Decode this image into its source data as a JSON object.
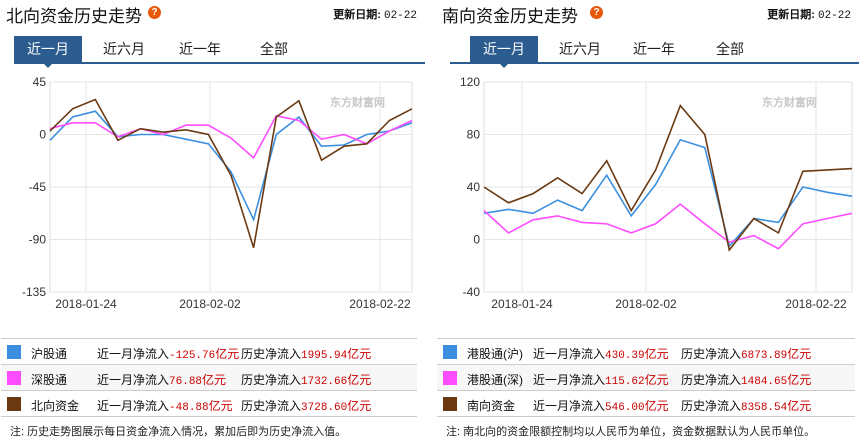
{
  "left": {
    "title": "北向资金历史走势",
    "update_label": "更新日期:",
    "update_value": "02-22",
    "tabs": [
      "近一月",
      "近六月",
      "近一年",
      "全部"
    ],
    "legend": [
      {
        "name": "沪股通",
        "monthly_label": "近一月净流入",
        "monthly_value": "-125.76",
        "unit": "亿元",
        "hist_label": "历史净流入",
        "hist_value": "1995.94",
        "color": "#3b8fe0"
      },
      {
        "name": "深股通",
        "monthly_label": "近一月净流入",
        "monthly_value": "76.88",
        "unit": "亿元",
        "hist_label": "历史净流入",
        "hist_value": "1732.66",
        "color": "#ff4dff"
      },
      {
        "name": "北向资金",
        "monthly_label": "近一月净流入",
        "monthly_value": "-48.88",
        "unit": "亿元",
        "hist_label": "历史净流入",
        "hist_value": "3728.60",
        "color": "#6b3a12"
      }
    ],
    "note": "注: 历史走势图展示每日资金净流入情况，累加后即为历史净流入值。",
    "watermark": "东方财富网",
    "chart_data": {
      "type": "line",
      "x_ticks": [
        "2018-01-24",
        "2018-02-02",
        "2018-02-22"
      ],
      "y_ticks": [
        45,
        0,
        -45,
        -90,
        -135
      ],
      "ylim": [
        -135,
        45
      ],
      "series": [
        {
          "name": "沪股通",
          "color": "#3b8fe0",
          "values": [
            -5,
            15,
            20,
            -2,
            0,
            0,
            -4,
            -8,
            -32,
            -73,
            0,
            15,
            -10,
            -9,
            0,
            3,
            10
          ]
        },
        {
          "name": "深股通",
          "color": "#ff4dff",
          "values": [
            5,
            10,
            10,
            -2,
            5,
            0,
            8,
            8,
            -3,
            -20,
            16,
            12,
            -4,
            0,
            -8,
            3,
            12
          ]
        },
        {
          "name": "北向资金",
          "color": "#6b3a12",
          "values": [
            3,
            22,
            30,
            -5,
            5,
            2,
            4,
            0,
            -35,
            -97,
            15,
            29,
            -22,
            -10,
            -8,
            12,
            22
          ]
        }
      ]
    }
  },
  "right": {
    "title": "南向资金历史走势",
    "update_label": "更新日期:",
    "update_value": "02-22",
    "tabs": [
      "近一月",
      "近六月",
      "近一年",
      "全部"
    ],
    "legend": [
      {
        "name": "港股通(沪)",
        "monthly_label": "近一月净流入",
        "monthly_value": "430.39",
        "unit": "亿元",
        "hist_label": "历史净流入",
        "hist_value": "6873.89",
        "color": "#3b8fe0"
      },
      {
        "name": "港股通(深)",
        "monthly_label": "近一月净流入",
        "monthly_value": "115.62",
        "unit": "亿元",
        "hist_label": "历史净流入",
        "hist_value": "1484.65",
        "color": "#ff4dff"
      },
      {
        "name": "南向资金",
        "monthly_label": "近一月净流入",
        "monthly_value": "546.00",
        "unit": "亿元",
        "hist_label": "历史净流入",
        "hist_value": "8358.54",
        "color": "#6b3a12"
      }
    ],
    "note": "注: 南北向的资金限额控制均以人民币为单位，资金数据默认为人民币单位。",
    "watermark": "东方财富网",
    "chart_data": {
      "type": "line",
      "x_ticks": [
        "2018-01-24",
        "2018-02-02",
        "2018-02-22"
      ],
      "y_ticks": [
        120,
        80,
        40,
        0,
        -40
      ],
      "ylim": [
        -40,
        120
      ],
      "series": [
        {
          "name": "港股通(沪)",
          "color": "#3b8fe0",
          "values": [
            20,
            23,
            20,
            30,
            22,
            49,
            18,
            42,
            76,
            70,
            -5,
            16,
            13,
            40,
            36,
            33
          ]
        },
        {
          "name": "港股通(深)",
          "color": "#ff4dff",
          "values": [
            22,
            5,
            15,
            18,
            13,
            12,
            5,
            12,
            27,
            12,
            -2,
            3,
            -7,
            12,
            16,
            20
          ]
        },
        {
          "name": "南向资金",
          "color": "#6b3a12",
          "values": [
            40,
            28,
            35,
            47,
            35,
            60,
            22,
            53,
            102,
            80,
            -8,
            16,
            5,
            52,
            53,
            54
          ]
        }
      ]
    }
  }
}
